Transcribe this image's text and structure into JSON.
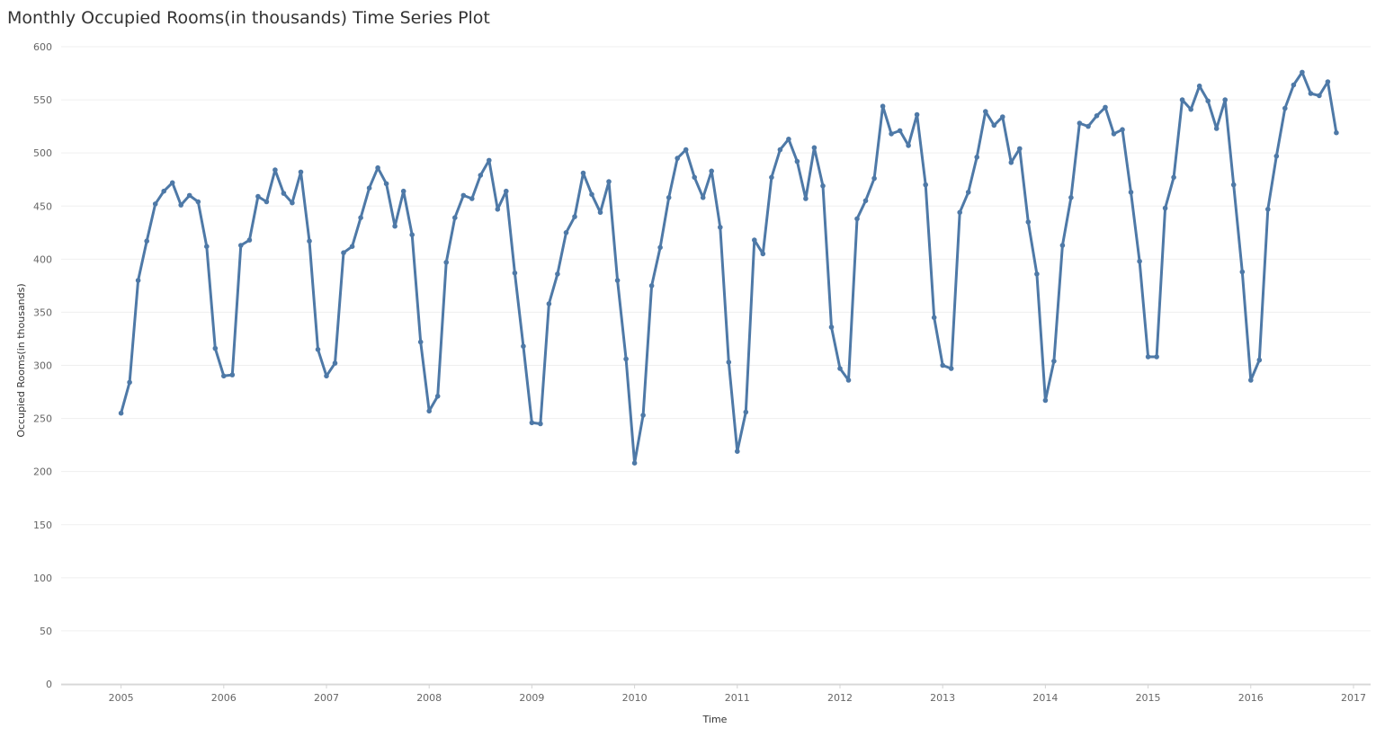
{
  "chart_data": {
    "type": "line",
    "title": "Monthly Occupied Rooms(in thousands) Time Series Plot",
    "xlabel": "Time",
    "ylabel": "Occupied Rooms(in thousands)",
    "x_start": "2005-01",
    "x_frequency": "monthly",
    "x_ticks": [
      "2005",
      "2006",
      "2007",
      "2008",
      "2009",
      "2010",
      "2011",
      "2012",
      "2013",
      "2014",
      "2015",
      "2016",
      "2017"
    ],
    "y_ticks": [
      0,
      50,
      100,
      150,
      200,
      250,
      300,
      350,
      400,
      450,
      500,
      550,
      600
    ],
    "xlim": [
      "2004-06",
      "2017-03"
    ],
    "ylim": [
      0,
      600
    ],
    "grid": "horizontal",
    "line_color": "#4e79a7",
    "series": [
      {
        "values": [
          255,
          284,
          380,
          417,
          452,
          464,
          472,
          451,
          460,
          454,
          412,
          316,
          290,
          291,
          413,
          418,
          459,
          454,
          484,
          462,
          453,
          482,
          417,
          315,
          290,
          302,
          406,
          412,
          439,
          467,
          486,
          471,
          431,
          464,
          423,
          322,
          257,
          271,
          397,
          439,
          460,
          457,
          479,
          493,
          447,
          464,
          387,
          318,
          246,
          245,
          358,
          386,
          425,
          440,
          481,
          461,
          444,
          473,
          380,
          306,
          208,
          253,
          375,
          411,
          458,
          495,
          503,
          477,
          458,
          483,
          430,
          303,
          219,
          256,
          418,
          405,
          477,
          503,
          513,
          492,
          457,
          505,
          469,
          336,
          297,
          286,
          438,
          455,
          476,
          544,
          518,
          521,
          507,
          536,
          470,
          345,
          300,
          297,
          444,
          463,
          496,
          539,
          526,
          534,
          491,
          504,
          435,
          386,
          267,
          304,
          413,
          458,
          528,
          525,
          535,
          543,
          518,
          522,
          463,
          398,
          308,
          308,
          448,
          477,
          550,
          541,
          563,
          549,
          523,
          550,
          470,
          388,
          286,
          305,
          447,
          497,
          542,
          564,
          576,
          556,
          554,
          567,
          519
        ]
      }
    ]
  }
}
